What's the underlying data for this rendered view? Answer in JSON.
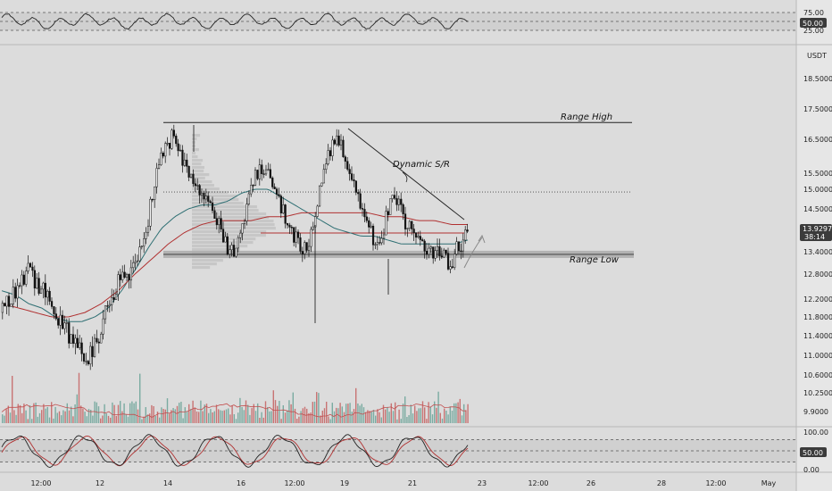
{
  "chart_data": [
    {
      "type": "line",
      "panel": "rsi",
      "y_ticks": [
        "75.00",
        "50.00",
        "25.00"
      ],
      "current_value": "50.00",
      "reference_lines": [
        75,
        50,
        25
      ]
    },
    {
      "type": "candlestick",
      "panel": "price",
      "quote_currency": "USDT",
      "y_ticks": [
        "18.5000",
        "17.5000",
        "16.5000",
        "15.5000",
        "15.0000",
        "14.5000",
        "13.4000",
        "12.8000",
        "12.2000",
        "11.8000",
        "11.4000",
        "11.0000",
        "10.6000",
        "10.2500",
        "9.9000"
      ],
      "last_price": "13.9297",
      "countdown": "38:14",
      "annotations": {
        "range_high": {
          "label": "Range High",
          "price": 17.05
        },
        "range_low": {
          "label": "Range Low",
          "price": 13.33
        },
        "dynamic_sr": {
          "label": "Dynamic S/R"
        }
      },
      "levels": {
        "dotted_level": 14.93,
        "poc_level": 13.88
      },
      "series": [
        {
          "values": [
            11.9,
            12.2,
            12.6,
            12.9,
            12.5,
            12.2,
            11.9,
            11.6,
            11.2,
            10.9,
            11.1,
            11.6,
            12.1,
            12.6,
            12.8,
            13.2,
            14.0,
            15.2,
            16.2,
            16.6,
            15.9,
            15.4,
            14.9,
            14.5,
            14.1,
            13.6,
            13.4,
            14.2,
            15.3,
            15.7,
            15.2,
            14.6,
            14.1,
            13.6,
            13.4,
            14.4,
            15.9,
            16.5,
            16.2,
            15.4,
            14.6,
            13.9,
            13.5,
            14.4,
            14.8,
            14.2,
            13.8,
            13.6,
            13.3,
            13.4,
            13.1,
            13.6,
            13.9
          ]
        },
        {
          "name": "",
          "values": [
            12.4,
            12.3,
            12.1,
            12.0,
            11.8,
            11.7,
            11.7,
            11.8,
            12.0,
            12.4,
            12.9,
            13.5,
            14.0,
            14.3,
            14.5,
            14.6,
            14.6,
            14.7,
            14.9,
            15.0,
            15.0,
            14.8,
            14.6,
            14.4,
            14.2,
            14.0,
            13.9,
            13.8,
            13.8,
            13.7,
            13.6,
            13.6,
            13.6,
            13.6,
            13.6,
            13.7
          ]
        },
        {
          "values": [
            12.1,
            12.0,
            11.9,
            11.8,
            11.8,
            11.9,
            12.1,
            12.4,
            12.8,
            13.2,
            13.6,
            13.9,
            14.1,
            14.2,
            14.2,
            14.2,
            14.3,
            14.3,
            14.4,
            14.4,
            14.4,
            14.4,
            14.4,
            14.3,
            14.3,
            14.2,
            14.2,
            14.1,
            14.1
          ]
        }
      ]
    },
    {
      "type": "line",
      "panel": "stoch",
      "y_ticks": [
        "100.00",
        "50.00",
        "0.00"
      ],
      "current_value": "50.00",
      "reference_lines": [
        80,
        50,
        20
      ]
    }
  ],
  "x_axis": {
    "ticks": [
      "12:00",
      "12",
      "14",
      "16",
      "12:00",
      "19",
      "21",
      "23",
      "12:00",
      "26",
      "28",
      "12:00",
      "May"
    ]
  }
}
